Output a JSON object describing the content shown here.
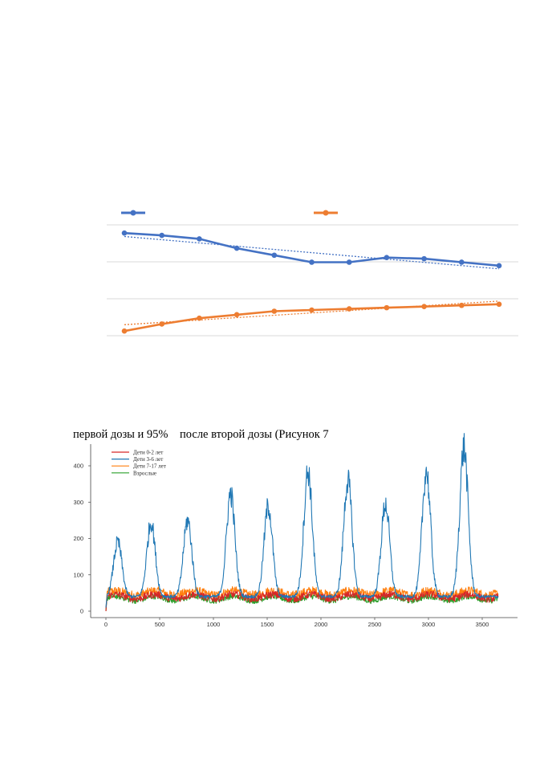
{
  "caption": "первой дозы и 95%    после второй дозы (Рисунок 7",
  "chart_data": [
    {
      "type": "line",
      "title": "",
      "x": [
        1,
        2,
        3,
        4,
        5,
        6,
        7,
        8,
        9,
        10,
        11
      ],
      "grid": true,
      "trendlines": true,
      "series": [
        {
          "name": "",
          "color": "#4472c4",
          "values": [
            8.8,
            8.6,
            8.3,
            7.5,
            6.9,
            6.3,
            6.3,
            6.7,
            6.6,
            6.3,
            6.0
          ]
        },
        {
          "name": "",
          "color": "#ed7d31",
          "values": [
            0.4,
            1.0,
            1.5,
            1.8,
            2.1,
            2.2,
            2.3,
            2.4,
            2.5,
            2.6,
            2.7
          ]
        }
      ],
      "ylim": [
        0,
        9.5
      ]
    },
    {
      "type": "line",
      "title": "",
      "xlabel": "",
      "ylabel": "",
      "xlim": [
        0,
        3650
      ],
      "ylim": [
        0,
        460
      ],
      "xticks": [
        0,
        500,
        1000,
        1500,
        2000,
        2500,
        3000,
        3500
      ],
      "yticks": [
        0,
        100,
        200,
        300,
        400
      ],
      "legend_position": "top-left",
      "grid": false,
      "series": [
        {
          "name": "Дети 0-2 лет",
          "color": "#d62728",
          "level": 40,
          "noise": 10
        },
        {
          "name": "Дети 3-6 лет",
          "color": "#1f77b4",
          "peak_days": [
            110,
            420,
            760,
            1160,
            1510,
            1880,
            2250,
            2600,
            2980,
            3330
          ],
          "peak_values": [
            190,
            245,
            250,
            325,
            290,
            385,
            360,
            295,
            385,
            450
          ],
          "trough": 40
        },
        {
          "name": "Дети 7-17 лет",
          "color": "#ff7f0e",
          "level": 50,
          "noise": 12
        },
        {
          "name": "Взрослые",
          "color": "#2ca02c",
          "level": 35,
          "noise": 8
        }
      ]
    }
  ]
}
